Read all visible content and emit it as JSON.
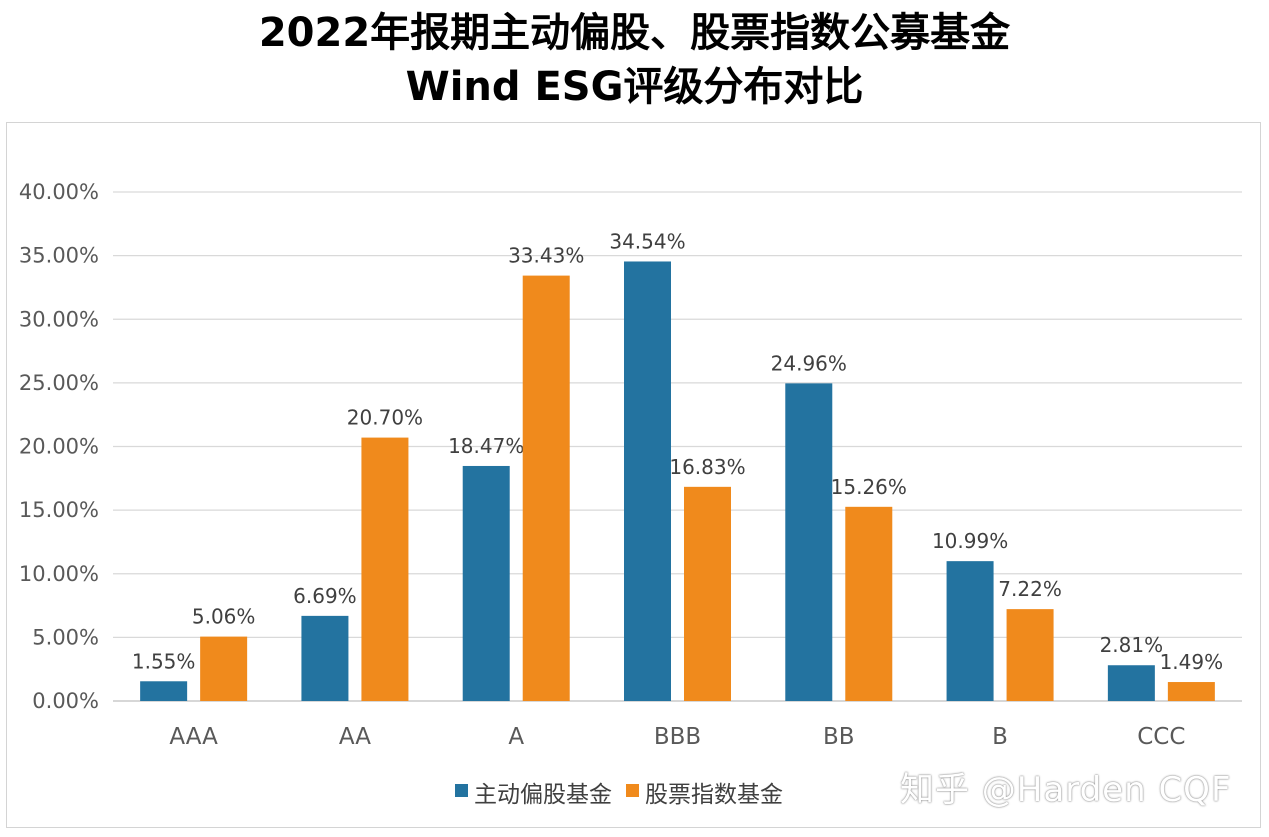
{
  "title": {
    "line1": "2022年报期主动偏股、股票指数公募基金",
    "line2": "Wind ESG评级分布对比"
  },
  "chart_data": {
    "type": "bar",
    "title": "2022年报期主动偏股、股票指数公募基金 Wind ESG评级分布对比",
    "categories": [
      "AAA",
      "AA",
      "A",
      "BBB",
      "BB",
      "B",
      "CCC"
    ],
    "series": [
      {
        "name": "主动偏股基金",
        "color": "#2373a0",
        "values": [
          1.55,
          6.69,
          18.47,
          34.54,
          24.96,
          10.99,
          2.81
        ],
        "labels": [
          "1.55%",
          "6.69%",
          "18.47%",
          "34.54%",
          "24.96%",
          "10.99%",
          "2.81%"
        ]
      },
      {
        "name": "股票指数基金",
        "color": "#f08a1c",
        "values": [
          5.06,
          20.7,
          33.43,
          16.83,
          15.26,
          7.22,
          1.49
        ],
        "labels": [
          "5.06%",
          "20.70%",
          "33.43%",
          "16.83%",
          "15.26%",
          "7.22%",
          "1.49%"
        ]
      }
    ],
    "ylim": [
      0,
      40
    ],
    "yticks": [
      "0.00%",
      "5.00%",
      "10.00%",
      "15.00%",
      "20.00%",
      "25.00%",
      "30.00%",
      "35.00%",
      "40.00%"
    ],
    "grid": true,
    "legend": "bottom"
  },
  "watermark": "知乎 @Harden CQF"
}
